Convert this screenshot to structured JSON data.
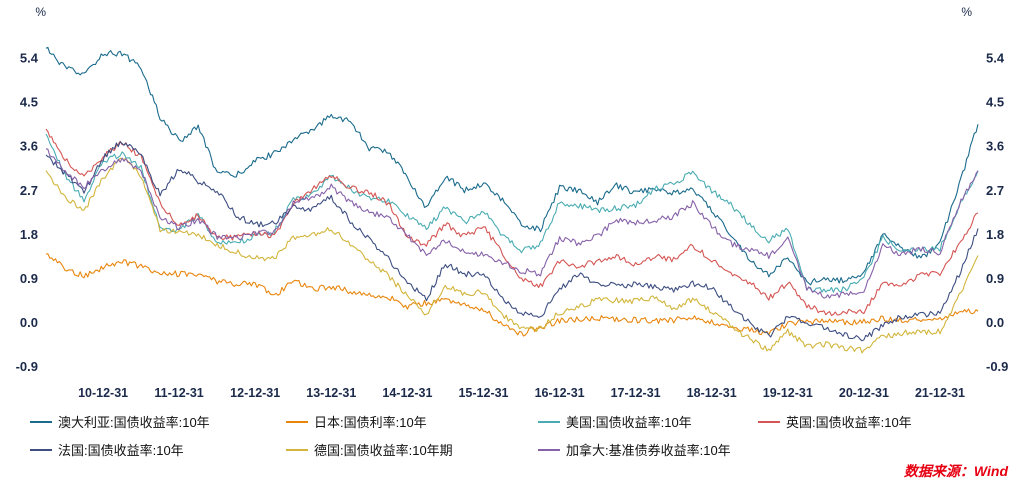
{
  "chart_data": {
    "type": "line",
    "title": "",
    "unit": "%",
    "grid": false,
    "legend_position": "bottom",
    "ylim": [
      -1.05,
      5.85
    ],
    "y_ticks": [
      5.4,
      4.5,
      3.6,
      2.7,
      1.8,
      0.9,
      0.0,
      -0.9
    ],
    "x": [
      "2010-03",
      "2010-06",
      "2010-09",
      "2010-12",
      "2011-03",
      "2011-06",
      "2011-09",
      "2011-12",
      "2012-03",
      "2012-06",
      "2012-09",
      "2012-12",
      "2013-03",
      "2013-06",
      "2013-09",
      "2013-12",
      "2014-03",
      "2014-06",
      "2014-09",
      "2014-12",
      "2015-03",
      "2015-06",
      "2015-09",
      "2015-12",
      "2016-03",
      "2016-06",
      "2016-09",
      "2016-12",
      "2017-03",
      "2017-06",
      "2017-09",
      "2017-12",
      "2018-03",
      "2018-06",
      "2018-09",
      "2018-12",
      "2019-03",
      "2019-06",
      "2019-09",
      "2019-12",
      "2020-03",
      "2020-06",
      "2020-09",
      "2020-12",
      "2021-03",
      "2021-06",
      "2021-09",
      "2021-12",
      "2022-03",
      "2022-06"
    ],
    "x_tick_labels": [
      "10-12-31",
      "11-12-31",
      "12-12-31",
      "13-12-31",
      "14-12-31",
      "15-12-31",
      "16-12-31",
      "17-12-31",
      "18-12-31",
      "19-12-31",
      "20-12-31",
      "21-12-31"
    ],
    "x_tick_indices": [
      3,
      7,
      11,
      15,
      19,
      23,
      27,
      31,
      35,
      39,
      43,
      47
    ],
    "series": [
      {
        "name": "澳大利亚:国债收益率:10年",
        "color": "#1a6b8c",
        "values": [
          5.6,
          5.2,
          5.05,
          5.5,
          5.5,
          5.2,
          4.2,
          3.7,
          4.0,
          3.05,
          3.0,
          3.3,
          3.45,
          3.75,
          3.9,
          4.25,
          4.1,
          3.55,
          3.5,
          2.95,
          2.35,
          3.0,
          2.7,
          2.85,
          2.5,
          2.0,
          1.9,
          2.75,
          2.7,
          2.45,
          2.8,
          2.65,
          2.75,
          2.65,
          2.7,
          2.3,
          1.8,
          1.3,
          0.95,
          1.35,
          0.8,
          0.9,
          0.85,
          1.0,
          1.8,
          1.5,
          1.3,
          1.65,
          2.8,
          4.05
        ]
      },
      {
        "name": "日本:国债利率:10年",
        "color": "#e8860d",
        "values": [
          1.4,
          1.1,
          0.95,
          1.12,
          1.25,
          1.14,
          1.03,
          0.99,
          0.99,
          0.84,
          0.78,
          0.79,
          0.55,
          0.85,
          0.68,
          0.74,
          0.64,
          0.57,
          0.53,
          0.33,
          0.4,
          0.46,
          0.35,
          0.27,
          -0.05,
          -0.23,
          -0.09,
          0.04,
          0.07,
          0.09,
          0.06,
          0.05,
          0.04,
          0.04,
          0.13,
          0.0,
          -0.08,
          -0.16,
          -0.22,
          -0.02,
          0.02,
          0.03,
          0.01,
          0.02,
          0.09,
          0.05,
          0.07,
          0.07,
          0.21,
          0.23
        ]
      },
      {
        "name": "美国:国债收益率:10年",
        "color": "#4aacb2",
        "values": [
          3.85,
          3.0,
          2.5,
          3.3,
          3.45,
          3.15,
          1.92,
          1.88,
          2.2,
          1.65,
          1.63,
          1.76,
          1.85,
          2.5,
          2.61,
          3.0,
          2.72,
          2.53,
          2.5,
          2.17,
          1.93,
          2.35,
          2.05,
          2.27,
          1.78,
          1.47,
          1.6,
          2.45,
          2.39,
          2.3,
          2.33,
          2.4,
          2.74,
          2.85,
          3.06,
          2.69,
          2.41,
          2.0,
          1.67,
          1.92,
          0.67,
          0.65,
          0.68,
          0.92,
          1.74,
          1.45,
          1.49,
          1.51,
          2.34,
          3.1
        ]
      },
      {
        "name": "英国:国债收益率:10年",
        "color": "#d45553",
        "values": [
          3.95,
          3.35,
          2.95,
          3.4,
          3.69,
          3.38,
          2.43,
          1.98,
          2.2,
          1.73,
          1.73,
          1.83,
          1.77,
          2.44,
          2.72,
          3.02,
          2.74,
          2.67,
          2.42,
          1.76,
          1.58,
          2.02,
          1.76,
          1.96,
          1.42,
          0.87,
          0.75,
          1.24,
          1.14,
          1.26,
          1.37,
          1.19,
          1.35,
          1.28,
          1.57,
          1.28,
          1.0,
          0.83,
          0.49,
          0.82,
          0.36,
          0.17,
          0.23,
          0.2,
          0.85,
          0.72,
          1.02,
          0.97,
          1.61,
          2.24
        ]
      },
      {
        "name": "法国:国债收益率:10年",
        "color": "#3d4e81",
        "values": [
          3.42,
          3.05,
          2.66,
          3.36,
          3.71,
          3.41,
          2.6,
          3.15,
          2.89,
          2.69,
          2.18,
          2.0,
          2.03,
          2.35,
          2.32,
          2.56,
          2.08,
          1.7,
          1.29,
          0.83,
          0.48,
          1.2,
          0.99,
          0.99,
          0.49,
          0.18,
          0.12,
          0.68,
          0.97,
          0.82,
          0.74,
          0.78,
          0.72,
          0.66,
          0.8,
          0.71,
          0.32,
          0.0,
          -0.28,
          0.12,
          -0.02,
          -0.11,
          -0.24,
          -0.34,
          -0.05,
          0.13,
          0.16,
          0.2,
          0.98,
          1.92
        ]
      },
      {
        "name": "德国:国债收益率:10年期",
        "color": "#d2b53b",
        "values": [
          3.1,
          2.58,
          2.28,
          2.96,
          3.35,
          3.01,
          1.89,
          1.83,
          1.79,
          1.58,
          1.44,
          1.32,
          1.29,
          1.73,
          1.78,
          1.93,
          1.57,
          1.25,
          0.95,
          0.54,
          0.18,
          0.76,
          0.59,
          0.63,
          0.15,
          -0.13,
          -0.12,
          0.2,
          0.33,
          0.47,
          0.46,
          0.43,
          0.5,
          0.3,
          0.47,
          0.24,
          -0.07,
          -0.33,
          -0.57,
          -0.19,
          -0.47,
          -0.45,
          -0.52,
          -0.57,
          -0.29,
          -0.21,
          -0.2,
          -0.18,
          0.55,
          1.37
        ]
      },
      {
        "name": "加拿大:基准债券收益率:10年",
        "color": "#8661a8",
        "values": [
          3.55,
          3.08,
          2.76,
          3.12,
          3.35,
          3.11,
          2.15,
          1.94,
          2.11,
          1.74,
          1.73,
          1.8,
          1.87,
          2.44,
          2.54,
          2.77,
          2.46,
          2.24,
          2.15,
          1.79,
          1.36,
          1.68,
          1.43,
          1.39,
          1.23,
          1.06,
          1.0,
          1.72,
          1.62,
          1.76,
          2.1,
          2.04,
          2.09,
          2.17,
          2.43,
          1.97,
          1.62,
          1.47,
          1.36,
          1.7,
          0.7,
          0.53,
          0.57,
          0.68,
          1.56,
          1.39,
          1.51,
          1.43,
          2.4,
          3.1
        ]
      }
    ]
  },
  "source": {
    "label": "数据来源：Wind",
    "color": "#e60012"
  }
}
